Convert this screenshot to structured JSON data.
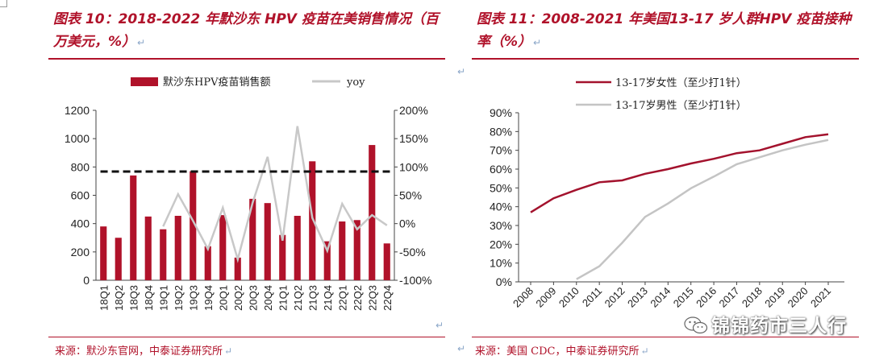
{
  "left": {
    "title": "图表 10：2018-2022 年默沙东 HPV 疫苗在美销售情况（百万美元，%）",
    "source": "来源：默沙东官网，中泰证券研究所",
    "chart_data": {
      "type": "bar",
      "categories": [
        "18Q1",
        "18Q2",
        "18Q3",
        "18Q4",
        "19Q1",
        "19Q2",
        "19Q3",
        "19Q4",
        "20Q1",
        "20Q2",
        "20Q3",
        "20Q4",
        "21Q1",
        "21Q2",
        "21Q3",
        "21Q4",
        "22Q1",
        "22Q2",
        "22Q3",
        "22Q4"
      ],
      "series": [
        {
          "name": "默沙东HPV疫苗销售额",
          "kind": "bar",
          "axis": "left",
          "color": "#b0122a",
          "values": [
            380,
            300,
            740,
            450,
            360,
            455,
            770,
            240,
            460,
            160,
            575,
            545,
            320,
            455,
            840,
            275,
            415,
            425,
            955,
            260
          ]
        },
        {
          "name": "yoy",
          "kind": "line",
          "axis": "right",
          "color": "#c8c8c8",
          "values": [
            null,
            null,
            null,
            null,
            -5,
            52,
            5,
            -45,
            28,
            -63,
            37,
            118,
            -30,
            172,
            10,
            -48,
            35,
            -10,
            15,
            -3
          ]
        }
      ],
      "reference_line": {
        "axis": "right",
        "value": 92,
        "style": "dashed",
        "color": "#111111"
      },
      "ylim_left": [
        0,
        1200
      ],
      "yticks_left": [
        0,
        200,
        400,
        600,
        800,
        1000,
        1200
      ],
      "ylim_right": [
        -100,
        200
      ],
      "yticks_right": [
        "-100%",
        "-50%",
        "0%",
        "50%",
        "100%",
        "150%",
        "200%"
      ],
      "yticks_right_values": [
        -100,
        -50,
        0,
        50,
        100,
        150,
        200
      ]
    }
  },
  "right": {
    "title": "图表 11：2008-2021 年美国13-17 岁人群HPV 疫苗接种率（%）",
    "source": "来源：美国 CDC，中泰证券研究所",
    "chart_data": {
      "type": "line",
      "x": [
        2008,
        2009,
        2010,
        2011,
        2012,
        2013,
        2014,
        2015,
        2016,
        2017,
        2018,
        2019,
        2020,
        2021
      ],
      "series": [
        {
          "name": "13-17岁女性（至少打1针）",
          "color": "#a3122d",
          "values": [
            37,
            44.5,
            49,
            53,
            54,
            57.5,
            60,
            63,
            65.5,
            68.5,
            70,
            73.5,
            77,
            78.5
          ]
        },
        {
          "name": "13-17岁男性（至少打1针）",
          "color": "#c4c4c4",
          "values": [
            null,
            null,
            1.4,
            8.3,
            20.8,
            34.6,
            41.7,
            49.8,
            56,
            62.6,
            66.3,
            70,
            73,
            75.5
          ]
        }
      ],
      "ylim": [
        0,
        90
      ],
      "yticks": [
        "0%",
        "10%",
        "20%",
        "30%",
        "40%",
        "50%",
        "60%",
        "70%",
        "80%",
        "90%"
      ],
      "yticks_values": [
        0,
        10,
        20,
        30,
        40,
        50,
        60,
        70,
        80,
        90
      ]
    }
  },
  "watermark": "锦锦药市三人行",
  "colors": {
    "accent": "#b0122a",
    "return_mark": "#8aa6c8"
  }
}
